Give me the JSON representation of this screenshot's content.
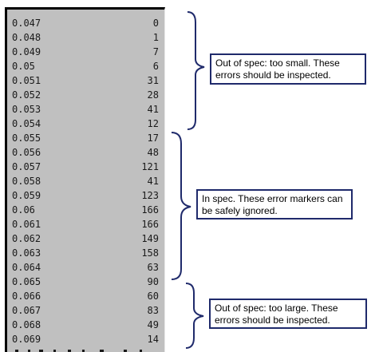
{
  "rows": [
    {
      "key": "0.047",
      "val": "0"
    },
    {
      "key": "0.048",
      "val": "1"
    },
    {
      "key": "0.049",
      "val": "7"
    },
    {
      "key": "0.05",
      "val": "6"
    },
    {
      "key": "0.051",
      "val": "31"
    },
    {
      "key": "0.052",
      "val": "28"
    },
    {
      "key": "0.053",
      "val": "41"
    },
    {
      "key": "0.054",
      "val": "12"
    },
    {
      "key": "0.055",
      "val": "17"
    },
    {
      "key": "0.056",
      "val": "48"
    },
    {
      "key": "0.057",
      "val": "121"
    },
    {
      "key": "0.058",
      "val": "41"
    },
    {
      "key": "0.059",
      "val": "123"
    },
    {
      "key": "0.06",
      "val": "166"
    },
    {
      "key": "0.061",
      "val": "166"
    },
    {
      "key": "0.062",
      "val": "149"
    },
    {
      "key": "0.063",
      "val": "158"
    },
    {
      "key": "0.064",
      "val": "63"
    },
    {
      "key": "0.065",
      "val": "90"
    },
    {
      "key": "0.066",
      "val": "60"
    },
    {
      "key": "0.067",
      "val": "83"
    },
    {
      "key": "0.068",
      "val": "49"
    },
    {
      "key": "0.069",
      "val": "14"
    }
  ],
  "annotations": {
    "too_small": "Out of spec: too small. These errors should be inspected.",
    "in_spec": "In spec. These error markers can be safely ignored.",
    "too_large": "Out of spec: too large. These errors should be inspected."
  },
  "colors": {
    "panel_bg": "#c0c0c0",
    "brace": "#1f2a6b"
  }
}
